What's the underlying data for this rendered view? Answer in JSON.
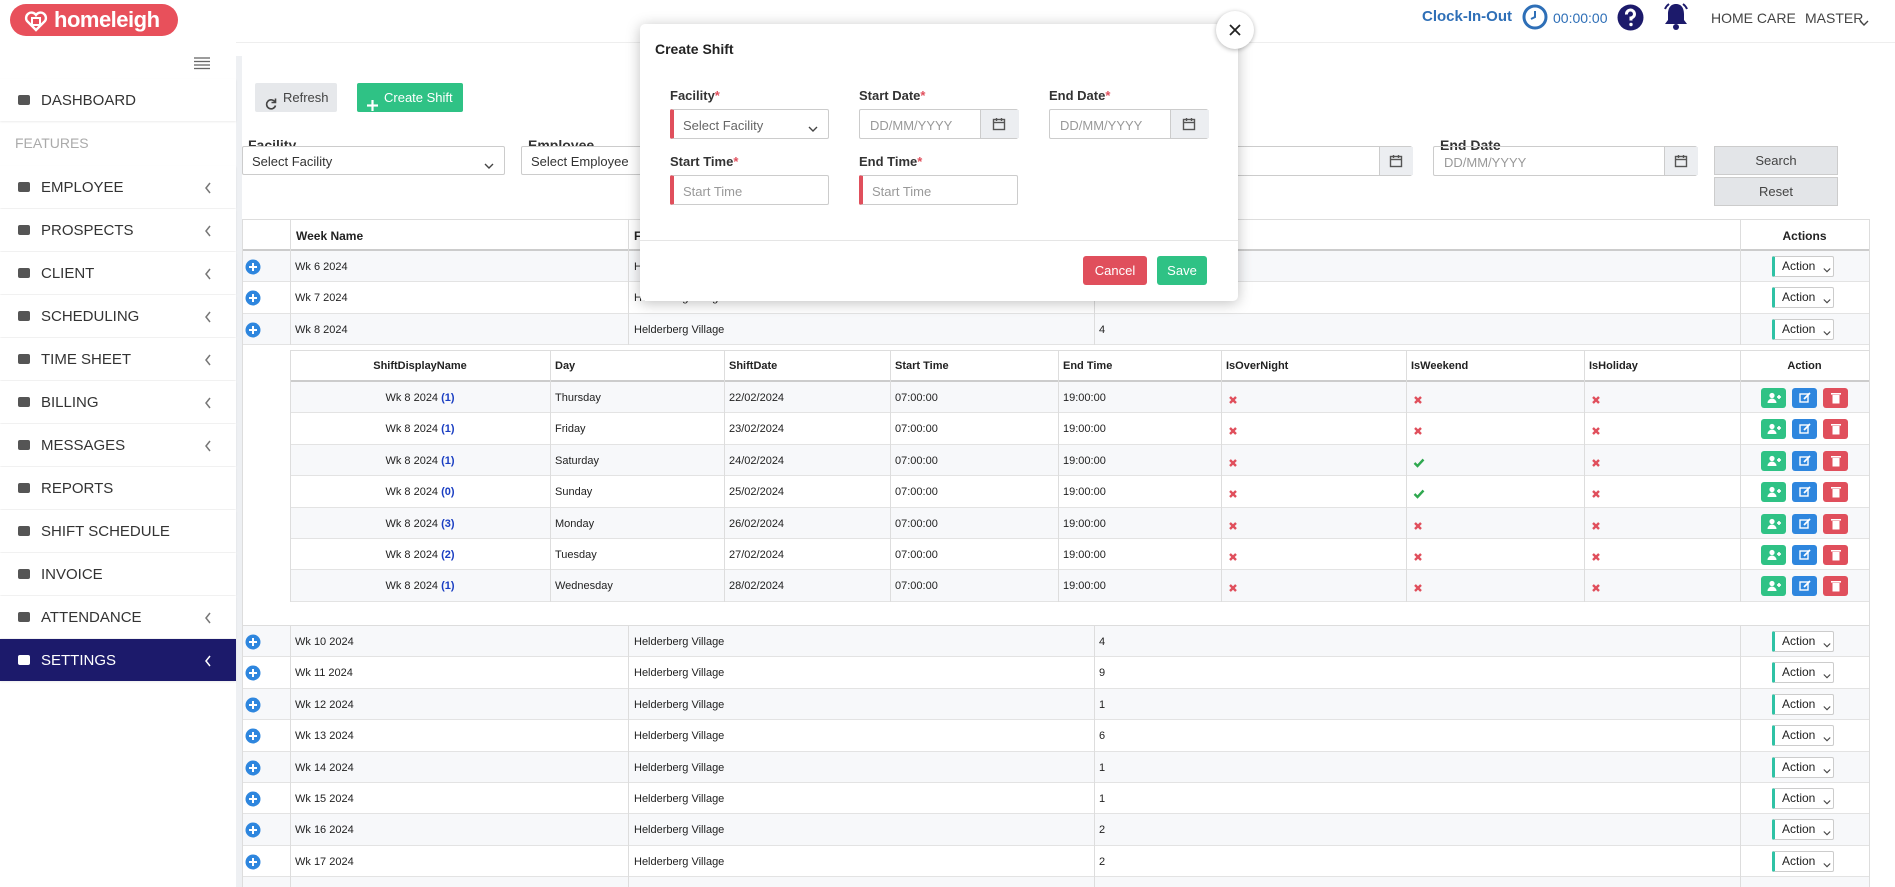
{
  "header": {
    "logo": "homeleigh",
    "clock_in_out": "Clock-In-Out",
    "timer": "00:00:00",
    "home_care": "HOME CARE",
    "master": "MASTER"
  },
  "sidebar": {
    "features_label": "FEATURES",
    "items": [
      {
        "label": "DASHBOARD",
        "submenu": false
      },
      {
        "label": "EMPLOYEE",
        "submenu": true
      },
      {
        "label": "PROSPECTS",
        "submenu": true
      },
      {
        "label": "CLIENT",
        "submenu": true
      },
      {
        "label": "SCHEDULING",
        "submenu": true
      },
      {
        "label": "TIME SHEET",
        "submenu": true
      },
      {
        "label": "BILLING",
        "submenu": true
      },
      {
        "label": "MESSAGES",
        "submenu": true
      },
      {
        "label": "REPORTS",
        "submenu": false
      },
      {
        "label": "SHIFT SCHEDULE",
        "submenu": false
      },
      {
        "label": "INVOICE",
        "submenu": false
      },
      {
        "label": "ATTENDANCE",
        "submenu": true
      },
      {
        "label": "SETTINGS",
        "submenu": true,
        "active": true
      }
    ]
  },
  "toolbar": {
    "refresh": "Refresh",
    "create_shift": "Create Shift"
  },
  "filters": {
    "facility_label": "Facility",
    "facility_placeholder": "Select Facility",
    "employee_label": "Employee",
    "employee_placeholder": "Select Employee",
    "end_date_label": "End Date",
    "end_date_placeholder": "DD/MM/YYYY",
    "search": "Search",
    "reset": "Reset"
  },
  "table": {
    "columns": {
      "week": "Week Name",
      "facility": "Facility",
      "actions": "Actions"
    },
    "action_label": "Action",
    "rows_before": [
      {
        "week": "Wk 6 2024",
        "facility": "Helderberg Village"
      },
      {
        "week": "Wk 7 2024",
        "facility": "Helderberg Village"
      },
      {
        "week": "Wk 8 2024",
        "facility": "Helderberg Village",
        "count": 4
      }
    ],
    "rows_after": [
      {
        "week": "Wk 10 2024",
        "facility": "Helderberg Village",
        "count": 4
      },
      {
        "week": "Wk 11 2024",
        "facility": "Helderberg Village",
        "count": 9
      },
      {
        "week": "Wk 12 2024",
        "facility": "Helderberg Village",
        "count": 1
      },
      {
        "week": "Wk 13 2024",
        "facility": "Helderberg Village",
        "count": 6
      },
      {
        "week": "Wk 14 2024",
        "facility": "Helderberg Village",
        "count": 1
      },
      {
        "week": "Wk 15 2024",
        "facility": "Helderberg Village",
        "count": 1
      },
      {
        "week": "Wk 16 2024",
        "facility": "Helderberg Village",
        "count": 2
      },
      {
        "week": "Wk 17 2024",
        "facility": "Helderberg Village",
        "count": 2
      }
    ]
  },
  "subtable": {
    "columns": [
      "ShiftDisplayName",
      "Day",
      "ShiftDate",
      "Start Time",
      "End Time",
      "IsOverNight",
      "IsWeekend",
      "IsHoliday",
      "Action"
    ],
    "rows": [
      {
        "name": "Wk 8 2024",
        "num": "(1)",
        "day": "Thursday",
        "date": "22/02/2024",
        "start": "07:00:00",
        "end": "19:00:00",
        "overnight": false,
        "weekend": false,
        "holiday": false
      },
      {
        "name": "Wk 8 2024",
        "num": "(1)",
        "day": "Friday",
        "date": "23/02/2024",
        "start": "07:00:00",
        "end": "19:00:00",
        "overnight": false,
        "weekend": false,
        "holiday": false
      },
      {
        "name": "Wk 8 2024",
        "num": "(1)",
        "day": "Saturday",
        "date": "24/02/2024",
        "start": "07:00:00",
        "end": "19:00:00",
        "overnight": false,
        "weekend": true,
        "holiday": false
      },
      {
        "name": "Wk 8 2024",
        "num": "(0)",
        "day": "Sunday",
        "date": "25/02/2024",
        "start": "07:00:00",
        "end": "19:00:00",
        "overnight": false,
        "weekend": true,
        "holiday": false
      },
      {
        "name": "Wk 8 2024",
        "num": "(3)",
        "day": "Monday",
        "date": "26/02/2024",
        "start": "07:00:00",
        "end": "19:00:00",
        "overnight": false,
        "weekend": false,
        "holiday": false
      },
      {
        "name": "Wk 8 2024",
        "num": "(2)",
        "day": "Tuesday",
        "date": "27/02/2024",
        "start": "07:00:00",
        "end": "19:00:00",
        "overnight": false,
        "weekend": false,
        "holiday": false
      },
      {
        "name": "Wk 8 2024",
        "num": "(1)",
        "day": "Wednesday",
        "date": "28/02/2024",
        "start": "07:00:00",
        "end": "19:00:00",
        "overnight": false,
        "weekend": false,
        "holiday": false
      }
    ]
  },
  "modal": {
    "title": "Create Shift",
    "required_mark": "*",
    "facility_label": "Facility",
    "facility_placeholder": "Select Facility",
    "start_date_label": "Start Date",
    "end_date_label": "End Date",
    "date_placeholder": "DD/MM/YYYY",
    "start_time_label": "Start Time",
    "end_time_label": "End Time",
    "time_placeholder": "Start Time",
    "cancel": "Cancel",
    "save": "Save"
  }
}
